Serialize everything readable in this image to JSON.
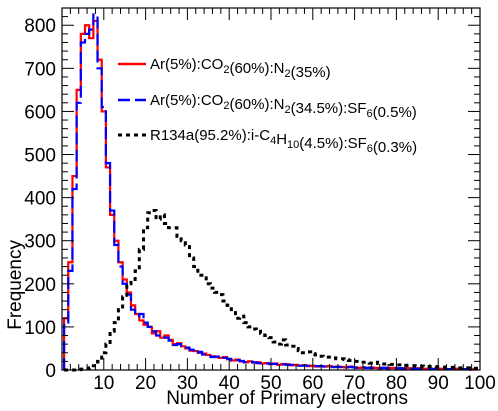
{
  "chart_data": {
    "type": "line",
    "style": "step-histogram",
    "xlabel": "Number of Primary electrons",
    "ylabel": "Frequency",
    "xlim": [
      0,
      100
    ],
    "ylim": [
      0,
      840
    ],
    "xticks": [
      10,
      20,
      30,
      40,
      50,
      60,
      70,
      80,
      90,
      100
    ],
    "yticks": [
      0,
      100,
      200,
      300,
      400,
      500,
      600,
      700,
      800
    ],
    "grid": false,
    "legend_position": "top-right",
    "bin_width": 1,
    "series": [
      {
        "name": "Ar(5%):CO2(60%):N2(35%)",
        "legend_parts": [
          [
            "Ar(5%):CO",
            ""
          ],
          [
            "2",
            "sub"
          ],
          [
            "(60%):N",
            ""
          ],
          [
            "2",
            "sub"
          ],
          [
            "(35%)",
            ""
          ]
        ],
        "color": "#ff0000",
        "dash": "solid",
        "x": [
          1,
          2,
          3,
          4,
          5,
          6,
          7,
          8,
          9,
          10,
          11,
          12,
          13,
          14,
          15,
          16,
          17,
          18,
          19,
          20,
          21,
          22,
          23,
          24,
          25,
          26,
          27,
          28,
          29,
          30,
          31,
          32,
          33,
          34,
          35,
          36,
          37,
          38,
          39,
          40,
          41,
          42,
          43,
          44,
          45,
          46,
          47,
          48,
          49,
          50,
          51,
          52,
          53,
          54,
          55,
          56,
          57,
          58,
          59,
          60,
          61,
          62,
          63,
          64,
          65,
          66,
          67,
          68,
          69,
          70,
          71,
          72,
          73,
          74,
          75,
          76,
          77,
          78,
          79,
          80,
          81,
          82,
          83,
          84,
          85,
          86,
          87,
          88,
          89,
          90,
          91,
          92,
          93,
          94,
          95,
          96,
          97,
          98,
          99
        ],
        "values": [
          120,
          250,
          450,
          650,
          780,
          800,
          770,
          810,
          720,
          600,
          470,
          360,
          300,
          250,
          210,
          180,
          150,
          130,
          115,
          105,
          100,
          85,
          90,
          75,
          80,
          70,
          60,
          62,
          55,
          50,
          45,
          44,
          40,
          38,
          35,
          32,
          30,
          28,
          30,
          25,
          22,
          24,
          20,
          18,
          20,
          17,
          18,
          15,
          16,
          14,
          15,
          12,
          14,
          13,
          11,
          12,
          10,
          11,
          9,
          10,
          8,
          9,
          8,
          9,
          7,
          8,
          7,
          6,
          8,
          6,
          5,
          6,
          5,
          6,
          5,
          4,
          5,
          4,
          5,
          4,
          4,
          3,
          4,
          3,
          4,
          3,
          3,
          3,
          2,
          3,
          3,
          2,
          2,
          3,
          2,
          2,
          2,
          1,
          2
        ]
      },
      {
        "name": "Ar(5%):CO2(60%):N2(34.5%):SF6(0.5%)",
        "legend_parts": [
          [
            "Ar(5%):CO",
            ""
          ],
          [
            "2",
            "sub"
          ],
          [
            "(60%):N",
            ""
          ],
          [
            "2",
            "sub"
          ],
          [
            "(34.5%):SF",
            ""
          ],
          [
            "6",
            "sub"
          ],
          [
            "(0.5%)",
            ""
          ]
        ],
        "color": "#0000ff",
        "dash": "12,5",
        "x": [
          1,
          2,
          3,
          4,
          5,
          6,
          7,
          8,
          9,
          10,
          11,
          12,
          13,
          14,
          15,
          16,
          17,
          18,
          19,
          20,
          21,
          22,
          23,
          24,
          25,
          26,
          27,
          28,
          29,
          30,
          31,
          32,
          33,
          34,
          35,
          36,
          37,
          38,
          39,
          40,
          41,
          42,
          43,
          44,
          45,
          46,
          47,
          48,
          49,
          50,
          51,
          52,
          53,
          54,
          55,
          56,
          57,
          58,
          59,
          60,
          61,
          62,
          63,
          64,
          65,
          66,
          67,
          68,
          69,
          70,
          71,
          72,
          73,
          74,
          75,
          76,
          77,
          78,
          79,
          80,
          81,
          82,
          83,
          84,
          85,
          86,
          87,
          88,
          89,
          90,
          91,
          92,
          93,
          94,
          95,
          96,
          97,
          98,
          99
        ],
        "values": [
          110,
          230,
          420,
          620,
          760,
          780,
          790,
          825,
          700,
          610,
          480,
          370,
          290,
          240,
          200,
          175,
          140,
          125,
          130,
          110,
          100,
          90,
          80,
          80,
          75,
          68,
          58,
          60,
          52,
          52,
          47,
          40,
          42,
          36,
          36,
          30,
          31,
          27,
          28,
          26,
          22,
          23,
          21,
          18,
          19,
          18,
          16,
          16,
          15,
          14,
          14,
          13,
          13,
          12,
          12,
          11,
          10,
          10,
          10,
          9,
          9,
          9,
          8,
          8,
          7,
          7,
          7,
          6,
          7,
          6,
          5,
          6,
          5,
          5,
          5,
          4,
          5,
          4,
          4,
          4,
          4,
          3,
          4,
          3,
          3,
          3,
          3,
          3,
          2,
          3,
          2,
          2,
          2,
          2,
          2,
          2,
          2,
          1,
          2
        ]
      },
      {
        "name": "R134a(95.2%):i-C4H10(4.5%):SF6(0.3%)",
        "legend_parts": [
          [
            "R134a(95.2%):i-C",
            ""
          ],
          [
            "4",
            "sub"
          ],
          [
            "H",
            ""
          ],
          [
            "10",
            "sub"
          ],
          [
            "(4.5%):SF",
            ""
          ],
          [
            "6",
            "sub"
          ],
          [
            "(0.3%)",
            ""
          ]
        ],
        "color": "#000000",
        "dash": "4,4",
        "x": [
          1,
          2,
          3,
          4,
          5,
          6,
          7,
          8,
          9,
          10,
          11,
          12,
          13,
          14,
          15,
          16,
          17,
          18,
          19,
          20,
          21,
          22,
          23,
          24,
          25,
          26,
          27,
          28,
          29,
          30,
          31,
          32,
          33,
          34,
          35,
          36,
          37,
          38,
          39,
          40,
          41,
          42,
          43,
          44,
          45,
          46,
          47,
          48,
          49,
          50,
          51,
          52,
          53,
          54,
          55,
          56,
          57,
          58,
          59,
          60,
          61,
          62,
          63,
          64,
          65,
          66,
          67,
          68,
          69,
          70,
          71,
          72,
          73,
          74,
          75,
          76,
          77,
          78,
          79,
          80,
          81,
          82,
          83,
          84,
          85,
          86,
          87,
          88,
          89,
          90,
          91,
          92,
          93,
          94,
          95,
          96,
          97,
          98,
          99
        ],
        "values": [
          0,
          0,
          0,
          1,
          2,
          3,
          5,
          10,
          20,
          40,
          60,
          90,
          110,
          140,
          170,
          200,
          210,
          230,
          280,
          330,
          365,
          370,
          350,
          360,
          340,
          330,
          330,
          310,
          300,
          290,
          260,
          240,
          220,
          220,
          200,
          190,
          180,
          175,
          160,
          150,
          140,
          120,
          125,
          110,
          100,
          95,
          90,
          85,
          80,
          75,
          65,
          60,
          70,
          58,
          55,
          50,
          45,
          40,
          42,
          38,
          35,
          32,
          30,
          30,
          28,
          26,
          26,
          24,
          22,
          20,
          20,
          18,
          18,
          16,
          18,
          15,
          14,
          14,
          13,
          12,
          12,
          11,
          10,
          10,
          9,
          9,
          8,
          8,
          8,
          7,
          7,
          6,
          6,
          6,
          5,
          5,
          5,
          4,
          4
        ]
      }
    ]
  }
}
